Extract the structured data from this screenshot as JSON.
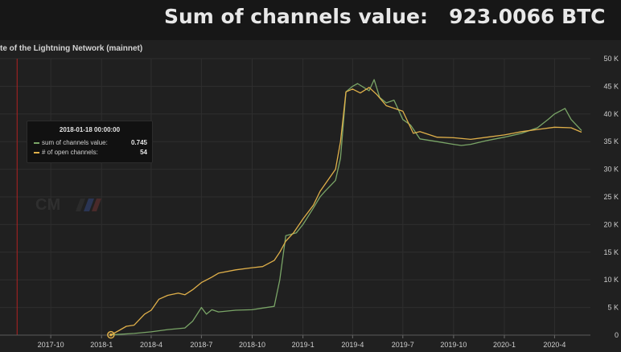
{
  "header": {
    "title": "Sum of channels value:   923.0066 BTC"
  },
  "panel": {
    "title": "te of the Lightning Network (mainnet)"
  },
  "tooltip": {
    "time": "2018-01-18 00:00:00",
    "rows": [
      {
        "label": "sum of channels value:",
        "value": "0.745",
        "color": "#7aa567"
      },
      {
        "label": "# of open channels:",
        "value": "54",
        "color": "#e0b04a"
      }
    ]
  },
  "watermark": {
    "text": "CM"
  },
  "colors": {
    "channels_value_line": "#7aa567",
    "open_channels_line": "#e0b04a",
    "crosshair": "#b02222",
    "grid": "#2e2e2e"
  },
  "chart_data": {
    "type": "line",
    "x_tick_labels": [
      "2017-10",
      "2018-1",
      "2018-4",
      "2018-7",
      "2018-10",
      "2019-1",
      "2019-4",
      "2019-7",
      "2019-10",
      "2020-1",
      "2020-4"
    ],
    "x_ticks": [
      "2017-10-01",
      "2018-01-01",
      "2018-04-01",
      "2018-07-01",
      "2018-10-01",
      "2019-01-01",
      "2019-04-01",
      "2019-07-01",
      "2019-10-01",
      "2020-01-01",
      "2020-04-01"
    ],
    "x_range": [
      "2017-07-01",
      "2020-06-05"
    ],
    "y_ticks": [
      0,
      5000,
      10000,
      15000,
      20000,
      25000,
      30000,
      35000,
      40000,
      45000,
      50000
    ],
    "y_tick_labels": [
      "0",
      "5 K",
      "10 K",
      "15 K",
      "20 K",
      "25 K",
      "30 K",
      "35 K",
      "40 K",
      "45 K",
      "50 K"
    ],
    "ylim": [
      0,
      50000
    ],
    "grid": true,
    "crosshair_date": "2017-08-01",
    "marker_date": "2018-01-18",
    "series": [
      {
        "points": [
          [
            "2018-01-18",
            50
          ],
          [
            "2018-03-01",
            300
          ],
          [
            "2018-04-01",
            600
          ],
          [
            "2018-05-01",
            1000
          ],
          [
            "2018-06-01",
            1300
          ],
          [
            "2018-06-15",
            2500
          ],
          [
            "2018-07-01",
            5000
          ],
          [
            "2018-07-10",
            3800
          ],
          [
            "2018-07-20",
            4600
          ],
          [
            "2018-08-01",
            4200
          ],
          [
            "2018-09-01",
            4500
          ],
          [
            "2018-10-01",
            4600
          ],
          [
            "2018-10-20",
            4900
          ],
          [
            "2018-11-10",
            5200
          ],
          [
            "2018-11-20",
            10000
          ],
          [
            "2018-12-01",
            18000
          ],
          [
            "2018-12-20",
            18500
          ],
          [
            "2019-01-01",
            20000
          ],
          [
            "2019-01-20",
            23000
          ],
          [
            "2019-02-01",
            25000
          ],
          [
            "2019-02-10",
            26000
          ],
          [
            "2019-03-01",
            28000
          ],
          [
            "2019-03-10",
            32000
          ],
          [
            "2019-03-15",
            38000
          ],
          [
            "2019-03-20",
            44000
          ],
          [
            "2019-04-01",
            45000
          ],
          [
            "2019-04-10",
            45500
          ],
          [
            "2019-05-01",
            44200
          ],
          [
            "2019-05-10",
            46200
          ],
          [
            "2019-05-20",
            43000
          ],
          [
            "2019-06-01",
            42000
          ],
          [
            "2019-06-15",
            42500
          ],
          [
            "2019-07-01",
            39000
          ],
          [
            "2019-07-15",
            38000
          ],
          [
            "2019-08-01",
            35500
          ],
          [
            "2019-09-01",
            35000
          ],
          [
            "2019-10-01",
            34500
          ],
          [
            "2019-10-15",
            34300
          ],
          [
            "2019-11-01",
            34500
          ],
          [
            "2019-12-01",
            35200
          ],
          [
            "2020-01-01",
            35800
          ],
          [
            "2020-02-01",
            36500
          ],
          [
            "2020-03-01",
            37500
          ],
          [
            "2020-03-20",
            39000
          ],
          [
            "2020-04-01",
            40000
          ],
          [
            "2020-04-20",
            41000
          ],
          [
            "2020-05-01",
            39000
          ],
          [
            "2020-05-20",
            37000
          ]
        ]
      },
      {
        "points": [
          [
            "2018-01-18",
            50
          ],
          [
            "2018-02-01",
            800
          ],
          [
            "2018-02-15",
            1600
          ],
          [
            "2018-03-01",
            1800
          ],
          [
            "2018-03-20",
            3800
          ],
          [
            "2018-04-01",
            4500
          ],
          [
            "2018-04-15",
            6500
          ],
          [
            "2018-05-01",
            7200
          ],
          [
            "2018-05-20",
            7600
          ],
          [
            "2018-06-01",
            7300
          ],
          [
            "2018-06-15",
            8200
          ],
          [
            "2018-07-01",
            9500
          ],
          [
            "2018-07-20",
            10500
          ],
          [
            "2018-08-01",
            11200
          ],
          [
            "2018-09-01",
            11800
          ],
          [
            "2018-10-01",
            12200
          ],
          [
            "2018-10-20",
            12400
          ],
          [
            "2018-11-10",
            13500
          ],
          [
            "2018-11-20",
            15000
          ],
          [
            "2018-12-01",
            17000
          ],
          [
            "2018-12-15",
            18500
          ],
          [
            "2019-01-01",
            21000
          ],
          [
            "2019-01-20",
            23500
          ],
          [
            "2019-02-01",
            26000
          ],
          [
            "2019-03-01",
            30000
          ],
          [
            "2019-03-10",
            35000
          ],
          [
            "2019-03-20",
            44000
          ],
          [
            "2019-04-01",
            44500
          ],
          [
            "2019-04-15",
            43800
          ],
          [
            "2019-05-01",
            44800
          ],
          [
            "2019-05-15",
            43500
          ],
          [
            "2019-06-01",
            41500
          ],
          [
            "2019-07-01",
            40500
          ],
          [
            "2019-07-20",
            36500
          ],
          [
            "2019-08-01",
            36800
          ],
          [
            "2019-09-01",
            35800
          ],
          [
            "2019-10-01",
            35700
          ],
          [
            "2019-11-01",
            35400
          ],
          [
            "2019-12-01",
            35800
          ],
          [
            "2020-01-01",
            36200
          ],
          [
            "2020-02-01",
            36800
          ],
          [
            "2020-03-01",
            37200
          ],
          [
            "2020-04-01",
            37600
          ],
          [
            "2020-05-01",
            37500
          ],
          [
            "2020-05-20",
            36700
          ]
        ]
      }
    ]
  }
}
